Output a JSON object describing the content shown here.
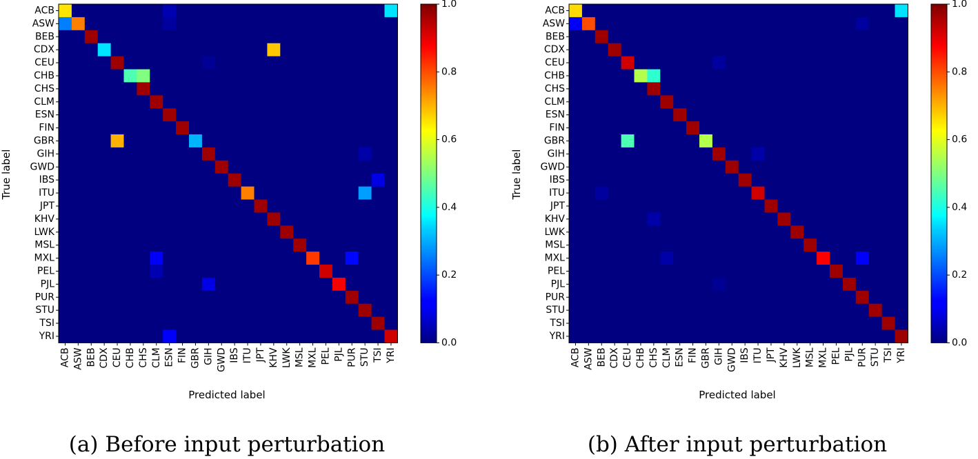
{
  "colorbar": {
    "min": 0.0,
    "max": 1.0,
    "ticks": [
      0.0,
      0.2,
      0.4,
      0.6,
      0.8,
      1.0
    ],
    "tick_labels": [
      "0.0",
      "0.2",
      "0.4",
      "0.6",
      "0.8",
      "1.0"
    ],
    "colormap": "jet"
  },
  "chart_data": [
    {
      "type": "heatmap",
      "id": "a",
      "caption": "(a) Before input perturbation",
      "xlabel": "Predicted label",
      "ylabel": "True label",
      "labels": [
        "ACB",
        "ASW",
        "BEB",
        "CDX",
        "CEU",
        "CHB",
        "CHS",
        "CLM",
        "ESN",
        "FIN",
        "GBR",
        "GIH",
        "GWD",
        "IBS",
        "ITU",
        "JPT",
        "KHV",
        "LWK",
        "MSL",
        "MXL",
        "PEL",
        "PJL",
        "PUR",
        "STU",
        "TSI",
        "YRI"
      ],
      "default_diagonal": 0.97,
      "default_off_diagonal": 0.0,
      "cells": [
        {
          "row": "ACB",
          "col": "ACB",
          "value": 0.65
        },
        {
          "row": "ACB",
          "col": "ESN",
          "value": 0.05
        },
        {
          "row": "ACB",
          "col": "YRI",
          "value": 0.35
        },
        {
          "row": "ASW",
          "col": "ACB",
          "value": 0.25
        },
        {
          "row": "ASW",
          "col": "ASW",
          "value": 0.75
        },
        {
          "row": "ASW",
          "col": "ESN",
          "value": 0.03
        },
        {
          "row": "CDX",
          "col": "CDX",
          "value": 0.35
        },
        {
          "row": "CDX",
          "col": "KHV",
          "value": 0.68
        },
        {
          "row": "CEU",
          "col": "GIH",
          "value": 0.02
        },
        {
          "row": "CHB",
          "col": "CHB",
          "value": 0.45
        },
        {
          "row": "CHB",
          "col": "CHS",
          "value": 0.5
        },
        {
          "row": "GBR",
          "col": "CEU",
          "value": 0.7
        },
        {
          "row": "GBR",
          "col": "GBR",
          "value": 0.3
        },
        {
          "row": "GIH",
          "col": "STU",
          "value": 0.04
        },
        {
          "row": "IBS",
          "col": "TSI",
          "value": 0.1
        },
        {
          "row": "ITU",
          "col": "ITU",
          "value": 0.75
        },
        {
          "row": "ITU",
          "col": "STU",
          "value": 0.28
        },
        {
          "row": "MXL",
          "col": "CLM",
          "value": 0.12
        },
        {
          "row": "MXL",
          "col": "MXL",
          "value": 0.82
        },
        {
          "row": "MXL",
          "col": "PUR",
          "value": 0.13
        },
        {
          "row": "PEL",
          "col": "CLM",
          "value": 0.05
        },
        {
          "row": "PEL",
          "col": "PEL",
          "value": 0.92
        },
        {
          "row": "PJL",
          "col": "GIH",
          "value": 0.1
        },
        {
          "row": "PJL",
          "col": "PJL",
          "value": 0.88
        },
        {
          "row": "YRI",
          "col": "ESN",
          "value": 0.12
        },
        {
          "row": "YRI",
          "col": "YRI",
          "value": 0.92
        }
      ]
    },
    {
      "type": "heatmap",
      "id": "b",
      "caption": "(b) After input perturbation",
      "xlabel": "Predicted label",
      "ylabel": "True label",
      "labels": [
        "ACB",
        "ASW",
        "BEB",
        "CDX",
        "CEU",
        "CHB",
        "CHS",
        "CLM",
        "ESN",
        "FIN",
        "GBR",
        "GIH",
        "GWD",
        "IBS",
        "ITU",
        "JPT",
        "KHV",
        "LWK",
        "MSL",
        "MXL",
        "PEL",
        "PJL",
        "PUR",
        "STU",
        "TSI",
        "YRI"
      ],
      "default_diagonal": 0.97,
      "default_off_diagonal": 0.0,
      "cells": [
        {
          "row": "ACB",
          "col": "ACB",
          "value": 0.66
        },
        {
          "row": "ACB",
          "col": "YRI",
          "value": 0.35
        },
        {
          "row": "ASW",
          "col": "ACB",
          "value": 0.12
        },
        {
          "row": "ASW",
          "col": "ASW",
          "value": 0.8
        },
        {
          "row": "ASW",
          "col": "PUR",
          "value": 0.03
        },
        {
          "row": "CEU",
          "col": "CEU",
          "value": 0.92
        },
        {
          "row": "CEU",
          "col": "GIH",
          "value": 0.03
        },
        {
          "row": "CHB",
          "col": "CHB",
          "value": 0.55
        },
        {
          "row": "CHB",
          "col": "CHS",
          "value": 0.42
        },
        {
          "row": "GBR",
          "col": "CEU",
          "value": 0.45
        },
        {
          "row": "GBR",
          "col": "GBR",
          "value": 0.55
        },
        {
          "row": "GIH",
          "col": "ITU",
          "value": 0.04
        },
        {
          "row": "ITU",
          "col": "BEB",
          "value": 0.03
        },
        {
          "row": "ITU",
          "col": "ITU",
          "value": 0.92
        },
        {
          "row": "KHV",
          "col": "CHS",
          "value": 0.04
        },
        {
          "row": "MXL",
          "col": "CLM",
          "value": 0.04
        },
        {
          "row": "MXL",
          "col": "MXL",
          "value": 0.88
        },
        {
          "row": "MXL",
          "col": "PUR",
          "value": 0.12
        },
        {
          "row": "PJL",
          "col": "GIH",
          "value": 0.02
        }
      ]
    }
  ]
}
